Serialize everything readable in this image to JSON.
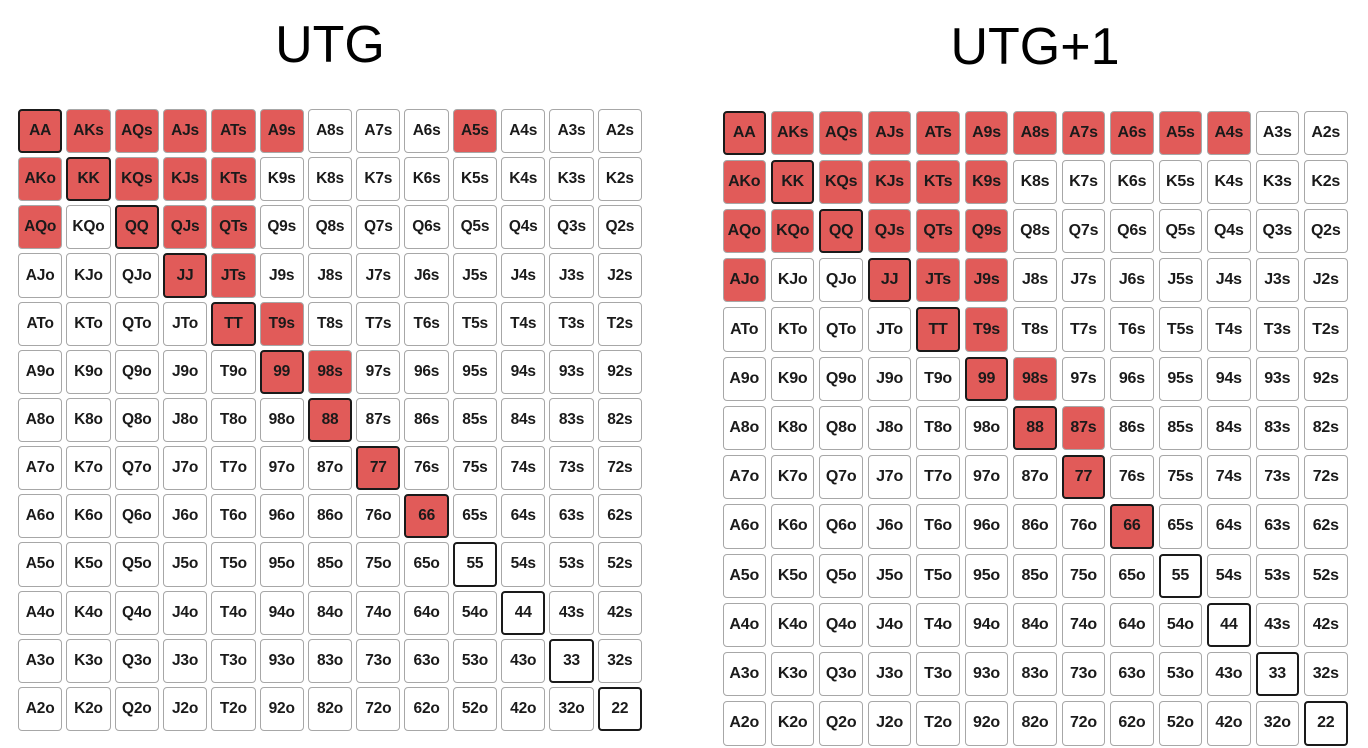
{
  "colors": {
    "raise": "#e15b59",
    "fold": "#ffffff",
    "pair_border": "#1a1a1a",
    "cell_border": "#a7a7a7"
  },
  "ranks": [
    "A",
    "K",
    "Q",
    "J",
    "T",
    "9",
    "8",
    "7",
    "6",
    "5",
    "4",
    "3",
    "2"
  ],
  "panels": [
    {
      "title": "UTG",
      "raise_hands": [
        "AA",
        "AKs",
        "AQs",
        "AJs",
        "ATs",
        "A9s",
        "A5s",
        "AKo",
        "KK",
        "KQs",
        "KJs",
        "KTs",
        "AQo",
        "QQ",
        "QJs",
        "QTs",
        "JJ",
        "JTs",
        "TT",
        "T9s",
        "99",
        "98s",
        "88",
        "77",
        "66"
      ]
    },
    {
      "title": "UTG+1",
      "raise_hands": [
        "AA",
        "AKs",
        "AQs",
        "AJs",
        "ATs",
        "A9s",
        "A8s",
        "A7s",
        "A6s",
        "A5s",
        "A4s",
        "AKo",
        "KK",
        "KQs",
        "KJs",
        "KTs",
        "K9s",
        "AQo",
        "KQo",
        "QQ",
        "QJs",
        "QTs",
        "Q9s",
        "AJo",
        "JJ",
        "JTs",
        "J9s",
        "TT",
        "T9s",
        "99",
        "98s",
        "88",
        "87s",
        "77",
        "66"
      ]
    }
  ]
}
